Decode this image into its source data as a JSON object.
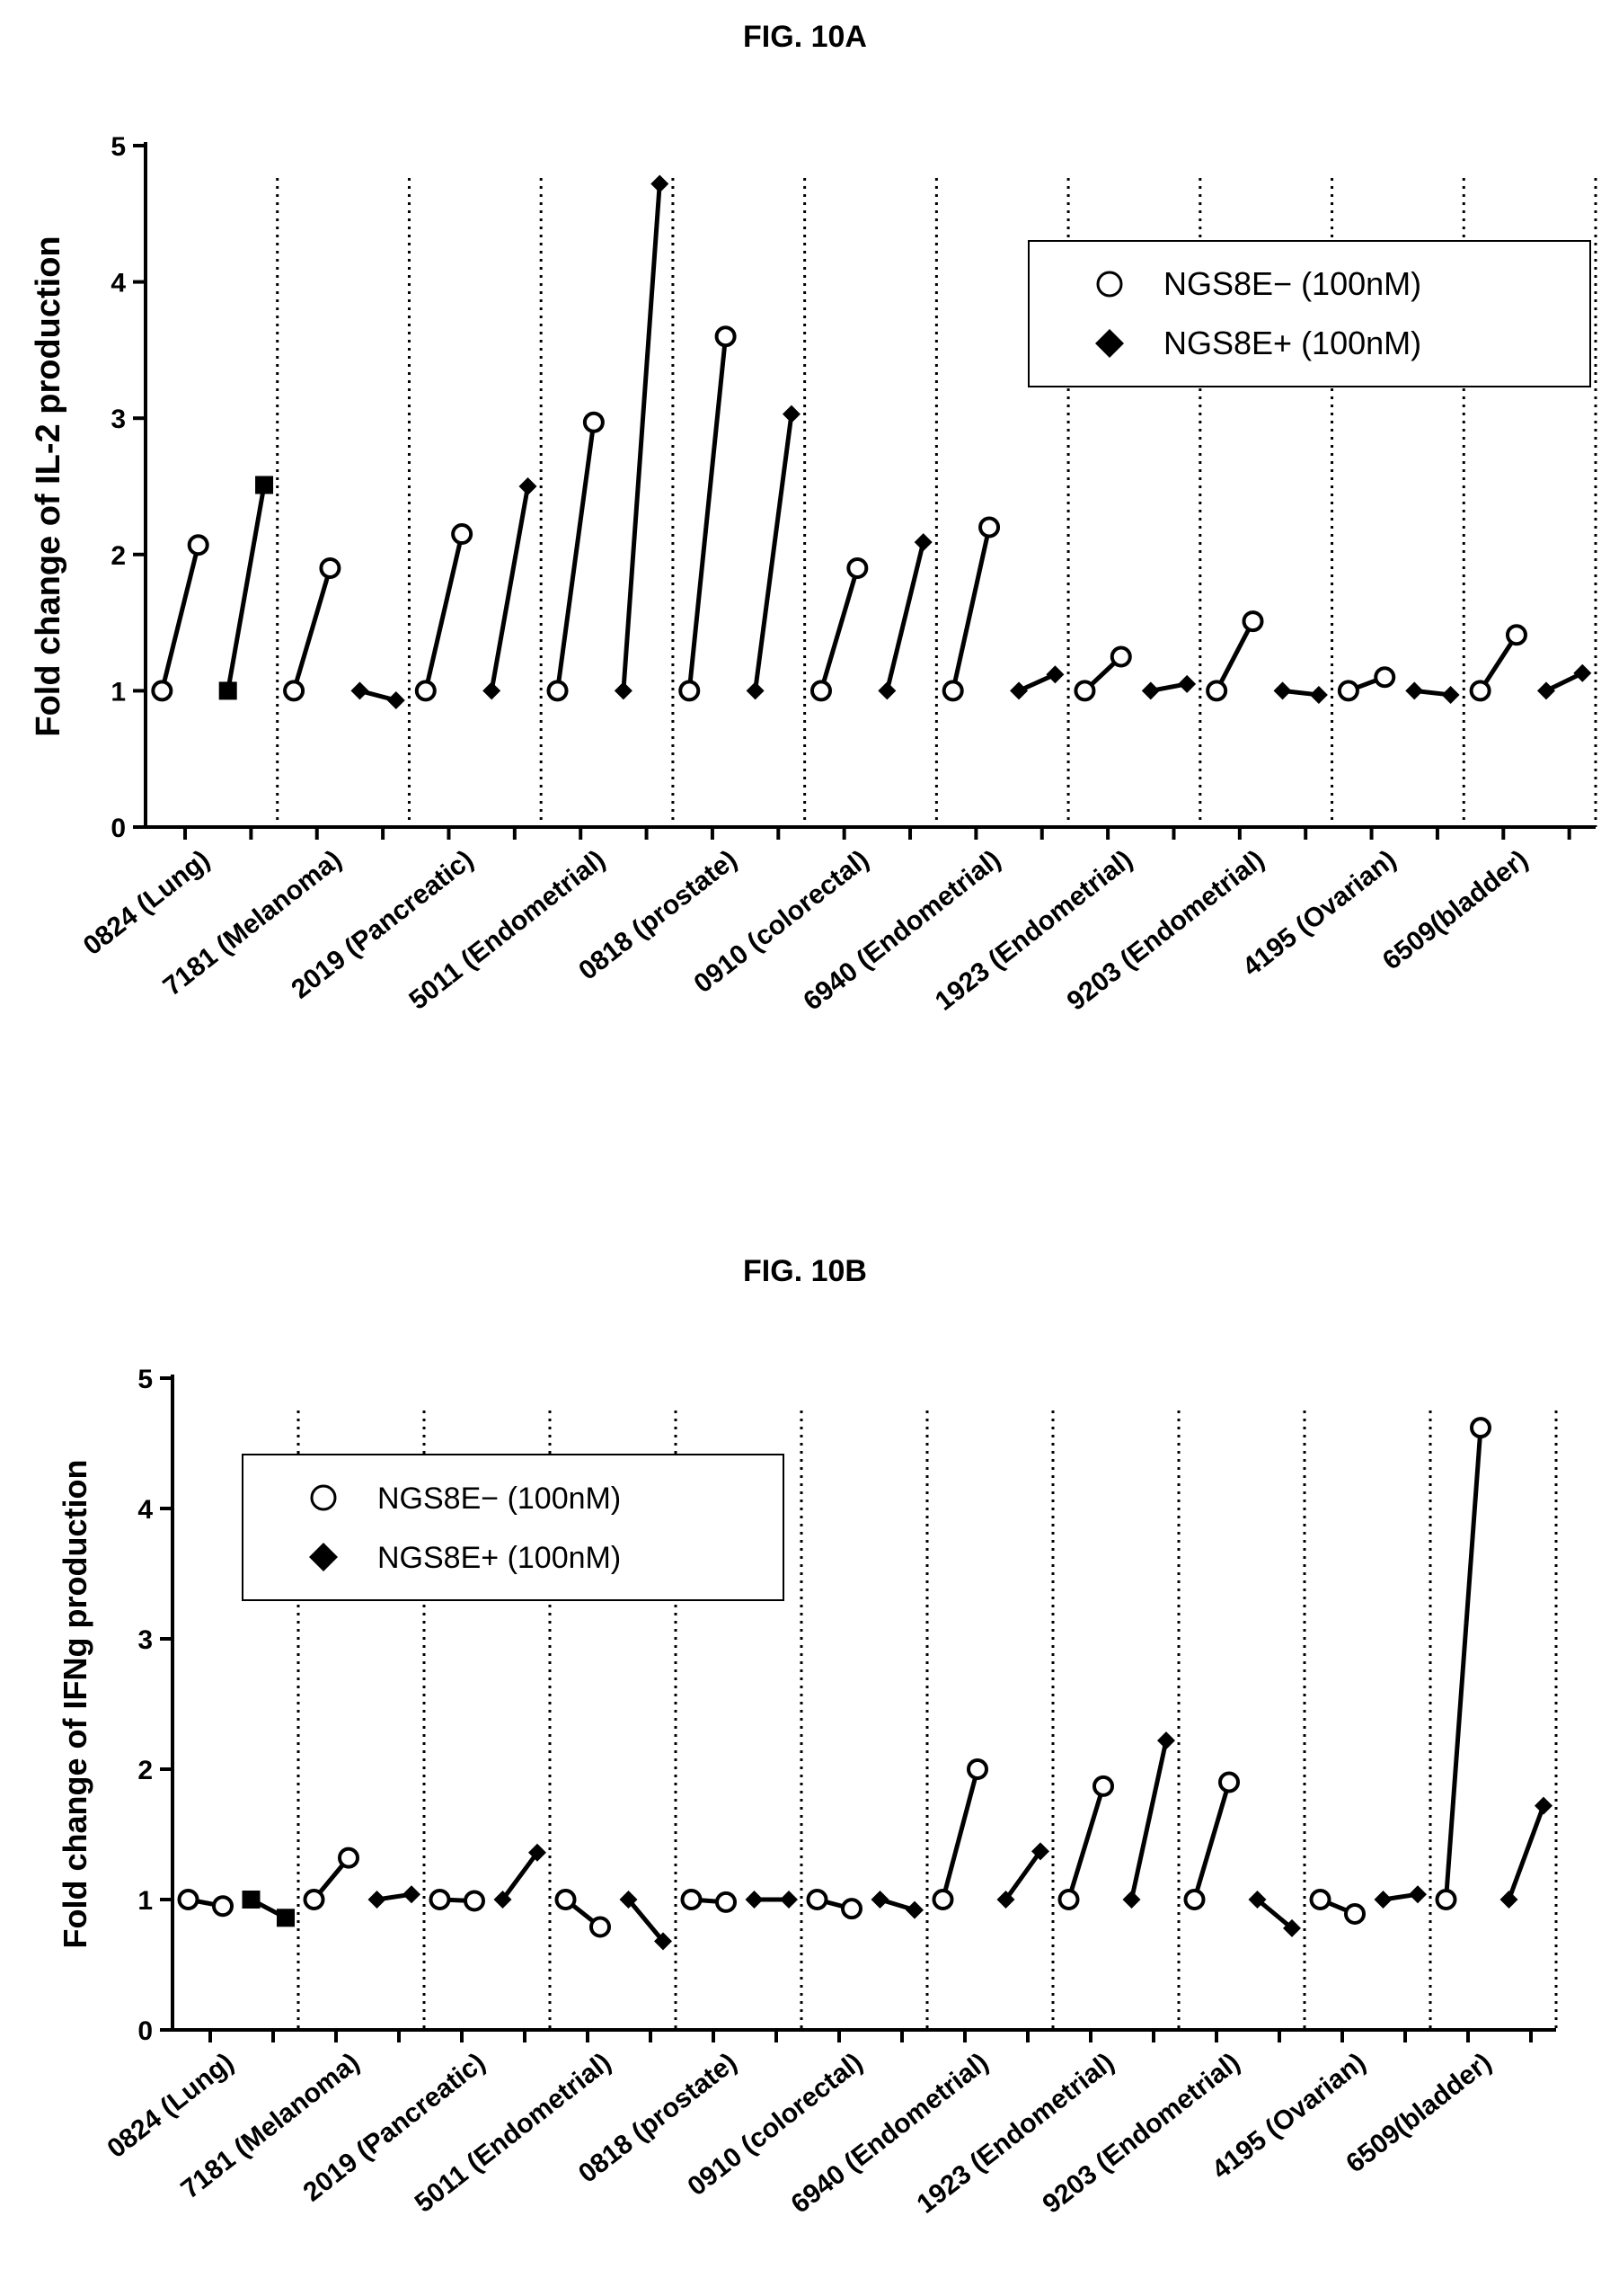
{
  "figures": {
    "a_title": "FIG. 10A",
    "b_title": "FIG. 10B"
  },
  "chart_data": [
    {
      "type": "scatter",
      "title": "FIG. 10A",
      "ylabel": "Fold change of IL-2 production",
      "xlabel": "",
      "ylim": [
        0,
        5
      ],
      "yticks": [
        "0",
        "1",
        "2",
        "3",
        "4",
        "5"
      ],
      "grid": false,
      "legend_position": "top-right",
      "legend": [
        "NGS8E− (100nM)",
        "NGS8E+ (100nM)"
      ],
      "categories": [
        "0824 (Lung)",
        "7181 (Melanoma)",
        "2019 (Pancreatic)",
        "5011 (Endometrial)",
        "0818 (prostate)",
        "0910 (colorectal)",
        "6940 (Endometrial)",
        "1923 (Endometrial)",
        "9203 (Endometrial)",
        "4195 (Ovarian)",
        "6509(bladder)"
      ],
      "series": [
        {
          "name": "NGS8E− (100nM)",
          "marker": "circle",
          "before": [
            1,
            1,
            1,
            1,
            1,
            1,
            1,
            1,
            1,
            1,
            1
          ],
          "after": [
            2.07,
            1.9,
            2.15,
            2.97,
            3.6,
            1.9,
            2.2,
            1.25,
            1.51,
            1.1,
            1.41
          ]
        },
        {
          "name": "NGS8E+ (100nM)",
          "marker": "diamond",
          "before": [
            1,
            1,
            1,
            1,
            1,
            1,
            1,
            1,
            1,
            1,
            1
          ],
          "after": [
            2.51,
            0.93,
            2.5,
            4.72,
            3.03,
            2.09,
            1.12,
            1.05,
            0.97,
            0.97,
            1.13
          ]
        }
      ]
    },
    {
      "type": "scatter",
      "title": "FIG. 10B",
      "ylabel": "Fold change of IFNg production",
      "xlabel": "",
      "ylim": [
        0,
        5
      ],
      "yticks": [
        "0",
        "1",
        "2",
        "3",
        "4",
        "5"
      ],
      "grid": false,
      "legend_position": "top-left",
      "legend": [
        "NGS8E− (100nM)",
        "NGS8E+ (100nM)"
      ],
      "categories": [
        "0824 (Lung)",
        "7181 (Melanoma)",
        "2019 (Pancreatic)",
        "5011 (Endometrial)",
        "0818 (prostate)",
        "0910 (colorectal)",
        "6940 (Endometrial)",
        "1923 (Endometrial)",
        "9203 (Endometrial)",
        "4195 (Ovarian)",
        "6509(bladder)"
      ],
      "series": [
        {
          "name": "NGS8E− (100nM)",
          "marker": "circle",
          "before": [
            1,
            1,
            1,
            1,
            1,
            1,
            1,
            1,
            1,
            1,
            1
          ],
          "after": [
            0.95,
            1.32,
            0.99,
            0.79,
            0.98,
            0.93,
            2.0,
            1.87,
            1.9,
            0.89,
            4.62
          ]
        },
        {
          "name": "NGS8E+ (100nM)",
          "marker": "diamond",
          "before": [
            1,
            1,
            1,
            1,
            1,
            1,
            1,
            1,
            1,
            1,
            1
          ],
          "after": [
            0.86,
            1.04,
            1.36,
            0.68,
            1.0,
            0.92,
            1.37,
            2.22,
            0.78,
            1.04,
            1.72
          ]
        }
      ]
    }
  ]
}
